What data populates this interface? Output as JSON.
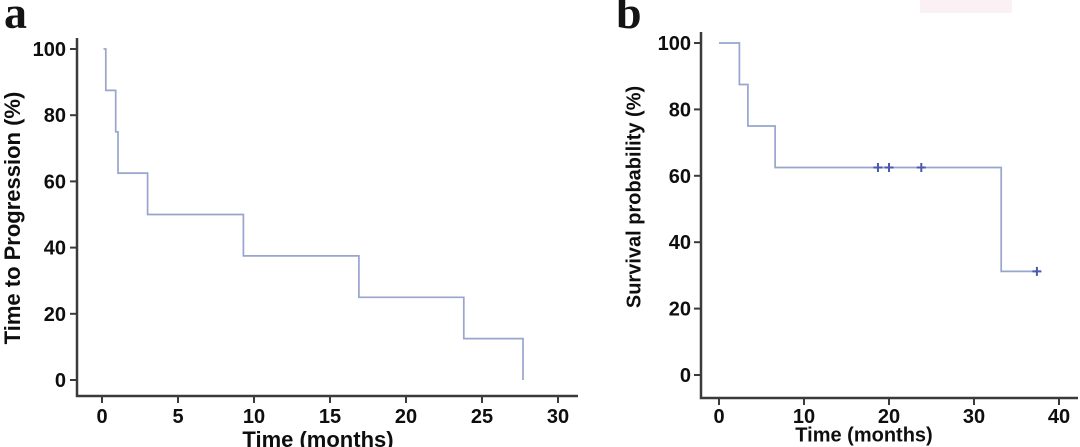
{
  "figure": {
    "panel_a_letter": "a",
    "panel_b_letter": "b",
    "background_color": "#ffffff",
    "artifact_color": "#fbf0f3"
  },
  "chart_data": [
    {
      "type": "line",
      "subtype": "kaplan_meier_step",
      "panel": "a",
      "title": "",
      "xlabel": "Time (months)",
      "ylabel": "Time to Progression (%)",
      "xlim": [
        0,
        30
      ],
      "ylim": [
        0,
        100
      ],
      "xticks": [
        0,
        5,
        10,
        15,
        20,
        25,
        30
      ],
      "yticks": [
        0,
        20,
        40,
        60,
        80,
        100
      ],
      "grid": false,
      "legend": null,
      "line_color": "#98a5cc",
      "axis_color": "#3a3a3a",
      "censor_color": "#4a58ad",
      "points": [
        [
          0.1,
          100
        ],
        [
          0.25,
          100
        ],
        [
          0.25,
          87.5
        ],
        [
          0.9,
          87.5
        ],
        [
          0.9,
          75
        ],
        [
          1.05,
          75
        ],
        [
          1.05,
          62.5
        ],
        [
          3.0,
          62.5
        ],
        [
          3.0,
          50
        ],
        [
          9.3,
          50
        ],
        [
          9.3,
          37.5
        ],
        [
          16.9,
          37.5
        ],
        [
          16.9,
          25
        ],
        [
          23.8,
          25
        ],
        [
          23.8,
          12.5
        ],
        [
          27.7,
          12.5
        ],
        [
          27.7,
          0
        ]
      ],
      "censor_marks": []
    },
    {
      "type": "line",
      "subtype": "kaplan_meier_step",
      "panel": "b",
      "title": "",
      "xlabel": "Time (months)",
      "ylabel": "Survival probability (%)",
      "xlim": [
        0,
        40
      ],
      "ylim": [
        0,
        100
      ],
      "xticks": [
        0,
        10,
        20,
        30,
        40
      ],
      "yticks": [
        0,
        20,
        40,
        60,
        80,
        100
      ],
      "grid": false,
      "legend": null,
      "line_color": "#98a5cc",
      "axis_color": "#3a3a3a",
      "censor_color": "#4a58ad",
      "points": [
        [
          0,
          100
        ],
        [
          2.4,
          100
        ],
        [
          2.4,
          87.5
        ],
        [
          3.4,
          87.5
        ],
        [
          3.4,
          75
        ],
        [
          6.6,
          75
        ],
        [
          6.6,
          62.5
        ],
        [
          33.2,
          62.5
        ],
        [
          33.2,
          31.2
        ],
        [
          37.4,
          31.2
        ]
      ],
      "censor_marks": [
        [
          18.7,
          62.5
        ],
        [
          20.0,
          62.5
        ],
        [
          23.8,
          62.5
        ],
        [
          37.4,
          31.2
        ]
      ]
    }
  ]
}
